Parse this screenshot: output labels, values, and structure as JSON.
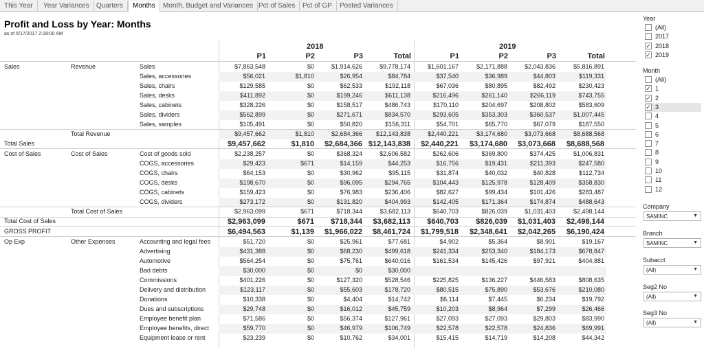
{
  "tabs": [
    "This Year",
    "Year Variances",
    "Quarters",
    "Months",
    "Month, Budget and Variances",
    "Pct of Sales",
    "Pct of GP",
    "Posted Variances"
  ],
  "title": "Profit and Loss by Year: Months",
  "as_of": "as of  5/17/2017 2:28:00 AM",
  "years": [
    "2018",
    "2019"
  ],
  "columns": [
    "P1",
    "P2",
    "P3",
    "Total",
    "P1",
    "P2",
    "P3",
    "Total"
  ],
  "rows": [
    {
      "c1": "Sales",
      "c2": "Revenue",
      "c3": "Sales",
      "v": [
        "$7,863,548",
        "$0",
        "$1,914,626",
        "$9,778,174",
        "$1,601,167",
        "$2,171,888",
        "$2,043,836",
        "$5,816,891"
      ]
    },
    {
      "c1": "",
      "c2": "",
      "c3": "Sales, accessories",
      "v": [
        "$56,021",
        "$1,810",
        "$26,954",
        "$84,784",
        "$37,540",
        "$36,989",
        "$44,803",
        "$119,331"
      ]
    },
    {
      "c1": "",
      "c2": "",
      "c3": "Sales, chairs",
      "v": [
        "$129,585",
        "$0",
        "$62,533",
        "$192,118",
        "$67,036",
        "$80,895",
        "$82,492",
        "$230,423"
      ]
    },
    {
      "c1": "",
      "c2": "",
      "c3": "Sales, desks",
      "v": [
        "$411,892",
        "$0",
        "$199,246",
        "$611,138",
        "$216,496",
        "$261,140",
        "$266,119",
        "$743,755"
      ]
    },
    {
      "c1": "",
      "c2": "",
      "c3": "Sales, cabinets",
      "v": [
        "$328,226",
        "$0",
        "$158,517",
        "$486,743",
        "$170,110",
        "$204,697",
        "$208,802",
        "$583,609"
      ]
    },
    {
      "c1": "",
      "c2": "",
      "c3": "Sales, dividers",
      "v": [
        "$562,899",
        "$0",
        "$271,671",
        "$834,570",
        "$293,605",
        "$353,303",
        "$360,537",
        "$1,007,445"
      ]
    },
    {
      "c1": "",
      "c2": "",
      "c3": "Sales, samples",
      "v": [
        "$105,491",
        "$0",
        "$50,820",
        "$156,311",
        "$54,701",
        "$65,770",
        "$67,079",
        "$187,550"
      ]
    },
    {
      "c1": "",
      "c2": "Total Revenue",
      "c3": "",
      "v": [
        "$9,457,662",
        "$1,810",
        "$2,684,366",
        "$12,143,838",
        "$2,440,221",
        "$3,174,680",
        "$3,073,668",
        "$8,688,568"
      ]
    },
    {
      "c1": "Total Sales",
      "c2": "",
      "c3": "",
      "total": true,
      "v": [
        "$9,457,662",
        "$1,810",
        "$2,684,366",
        "$12,143,838",
        "$2,440,221",
        "$3,174,680",
        "$3,073,668",
        "$8,688,568"
      ]
    },
    {
      "c1": "Cost of Sales",
      "c2": "Cost of Sales",
      "c3": "Cost of goods sold",
      "v": [
        "$2,238,257",
        "$0",
        "$368,324",
        "$2,606,582",
        "$262,606",
        "$369,800",
        "$374,425",
        "$1,006,831"
      ]
    },
    {
      "c1": "",
      "c2": "",
      "c3": "COGS, accessories",
      "v": [
        "$29,423",
        "$671",
        "$14,159",
        "$44,253",
        "$16,756",
        "$19,431",
        "$211,393",
        "$247,580"
      ]
    },
    {
      "c1": "",
      "c2": "",
      "c3": "COGS, chairs",
      "v": [
        "$64,153",
        "$0",
        "$30,962",
        "$95,115",
        "$31,874",
        "$40,032",
        "$40,828",
        "$112,734"
      ]
    },
    {
      "c1": "",
      "c2": "",
      "c3": "COGS, desks",
      "v": [
        "$198,670",
        "$0",
        "$96,095",
        "$294,765",
        "$104,443",
        "$125,978",
        "$128,409",
        "$358,830"
      ]
    },
    {
      "c1": "",
      "c2": "",
      "c3": "COGS, cabinets",
      "v": [
        "$159,423",
        "$0",
        "$76,983",
        "$236,406",
        "$82,627",
        "$99,434",
        "$101,426",
        "$283,487"
      ]
    },
    {
      "c1": "",
      "c2": "",
      "c3": "COGS, dividers",
      "v": [
        "$273,172",
        "$0",
        "$131,820",
        "$404,993",
        "$142,405",
        "$171,364",
        "$174,874",
        "$488,643"
      ]
    },
    {
      "c1": "",
      "c2": "Total Cost of Sales",
      "c3": "",
      "v": [
        "$2,963,099",
        "$671",
        "$718,344",
        "$3,682,113",
        "$640,703",
        "$826,039",
        "$1,031,403",
        "$2,498,144"
      ]
    },
    {
      "c1": "Total Cost of Sales",
      "c2": "",
      "c3": "",
      "total": true,
      "v": [
        "$2,963,099",
        "$671",
        "$718,344",
        "$3,682,113",
        "$640,703",
        "$826,039",
        "$1,031,403",
        "$2,498,144"
      ]
    },
    {
      "c1": "GROSS PROFIT",
      "c2": "",
      "c3": "",
      "total": true,
      "gross": true,
      "v": [
        "$6,494,563",
        "$1,139",
        "$1,966,022",
        "$8,461,724",
        "$1,799,518",
        "$2,348,641",
        "$2,042,265",
        "$6,190,424"
      ]
    },
    {
      "c1": "Op Exp",
      "c2": "Other Expenses",
      "c3": "Accounting and legal fees",
      "v": [
        "$51,720",
        "$0",
        "$25,961",
        "$77,681",
        "$4,902",
        "$5,364",
        "$8,901",
        "$19,167"
      ]
    },
    {
      "c1": "",
      "c2": "",
      "c3": "Advertising",
      "v": [
        "$431,388",
        "$0",
        "$68,230",
        "$499,618",
        "$241,334",
        "$253,340",
        "$184,173",
        "$678,847"
      ]
    },
    {
      "c1": "",
      "c2": "",
      "c3": "Automotive",
      "v": [
        "$564,254",
        "$0",
        "$75,761",
        "$640,016",
        "$161,534",
        "$145,426",
        "$97,921",
        "$404,881"
      ]
    },
    {
      "c1": "",
      "c2": "",
      "c3": "Bad debts",
      "v": [
        "$30,000",
        "$0",
        "$0",
        "$30,000",
        "",
        "",
        "",
        ""
      ]
    },
    {
      "c1": "",
      "c2": "",
      "c3": "Commissions",
      "v": [
        "$401,226",
        "$0",
        "$127,320",
        "$528,546",
        "$225,825",
        "$136,227",
        "$446,583",
        "$808,635"
      ]
    },
    {
      "c1": "",
      "c2": "",
      "c3": "Delivery and distribution",
      "v": [
        "$123,117",
        "$0",
        "$55,603",
        "$178,720",
        "$80,515",
        "$75,890",
        "$53,676",
        "$210,080"
      ]
    },
    {
      "c1": "",
      "c2": "",
      "c3": "Donations",
      "v": [
        "$10,338",
        "$0",
        "$4,404",
        "$14,742",
        "$6,114",
        "$7,445",
        "$6,234",
        "$19,792"
      ]
    },
    {
      "c1": "",
      "c2": "",
      "c3": "Dues and subscriptions",
      "v": [
        "$29,748",
        "$0",
        "$16,012",
        "$45,759",
        "$10,203",
        "$8,964",
        "$7,299",
        "$26,466"
      ]
    },
    {
      "c1": "",
      "c2": "",
      "c3": "Employee benefit plan",
      "v": [
        "$71,586",
        "$0",
        "$56,374",
        "$127,961",
        "$27,093",
        "$27,093",
        "$29,803",
        "$83,990"
      ]
    },
    {
      "c1": "",
      "c2": "",
      "c3": "Employee benefits, direct",
      "v": [
        "$59,770",
        "$0",
        "$46,979",
        "$106,749",
        "$22,578",
        "$22,578",
        "$24,836",
        "$69,991"
      ]
    },
    {
      "c1": "",
      "c2": "",
      "c3": "Equipment lease or rent",
      "v": [
        "$23,239",
        "$0",
        "$10,762",
        "$34,001",
        "$15,415",
        "$14,719",
        "$14,208",
        "$44,342"
      ]
    }
  ],
  "filters": {
    "year": {
      "title": "Year",
      "items": [
        {
          "label": "(All)",
          "checked": false
        },
        {
          "label": "2017",
          "checked": false
        },
        {
          "label": "2018",
          "checked": true
        },
        {
          "label": "2019",
          "checked": true
        }
      ]
    },
    "month": {
      "title": "Month",
      "items": [
        {
          "label": "(All)",
          "checked": false
        },
        {
          "label": "1",
          "checked": true
        },
        {
          "label": "2",
          "checked": true
        },
        {
          "label": "3",
          "checked": true,
          "highlight": true
        },
        {
          "label": "4",
          "checked": false
        },
        {
          "label": "5",
          "checked": false
        },
        {
          "label": "6",
          "checked": false
        },
        {
          "label": "7",
          "checked": false
        },
        {
          "label": "8",
          "checked": false
        },
        {
          "label": "9",
          "checked": false
        },
        {
          "label": "10",
          "checked": false
        },
        {
          "label": "11",
          "checked": false
        },
        {
          "label": "12",
          "checked": false
        }
      ]
    },
    "company": {
      "title": "Company",
      "value": "SAMINC"
    },
    "branch": {
      "title": "Branch",
      "value": "SAMINC"
    },
    "subacct": {
      "title": "Subacct",
      "value": "(All)"
    },
    "seg2": {
      "title": "Seg2 No",
      "value": "(All)"
    },
    "seg3": {
      "title": "Seg3 No",
      "value": "(All)"
    }
  },
  "icons": {
    "checkmark": "check-icon",
    "dropdown": "chevron-down-icon"
  }
}
